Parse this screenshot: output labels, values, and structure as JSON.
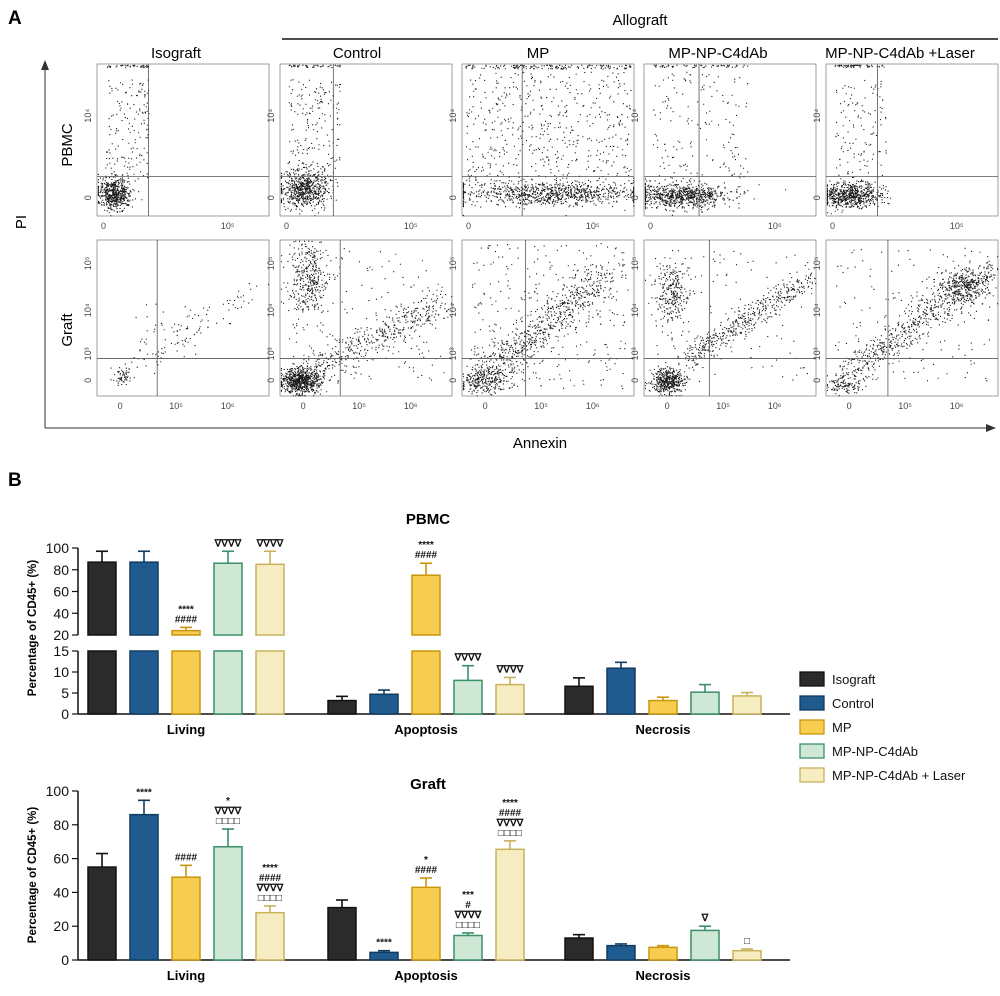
{
  "panel_a": {
    "label": "A",
    "allograft_label": "Allograft",
    "columns": [
      "Isograft",
      "Control",
      "MP",
      "MP-NP-C4dAb",
      "MP-NP-C4dAb +Laser"
    ],
    "rows": [
      "PBMC",
      "Graft"
    ],
    "y_axis_label": "PI",
    "x_axis_label": "Annexin",
    "pbmc_x_ticks": [
      "0",
      "10⁵"
    ],
    "pbmc_y_ticks": [
      "0",
      "10⁴"
    ],
    "graft_x_ticks": [
      "0",
      "10⁵",
      "10⁶"
    ],
    "graft_y_ticks": [
      "0",
      "10³",
      "10⁴",
      "10⁵"
    ]
  },
  "panel_b": {
    "label": "B"
  },
  "colors": {
    "Isograft": "#2b2b2b",
    "Control": "#1f5b8e",
    "MP": "#f7cd4f",
    "MP-NP-C4dAb": "#cfe8d6",
    "MP-NP-C4dAb + Laser": "#f6ecc1"
  },
  "chart_data": [
    {
      "type": "bar",
      "title": "PBMC",
      "ylabel": "Percentage of CD45+ (%)",
      "categories": [
        "Living",
        "Apoptosis",
        "Necrosis"
      ],
      "ylim_lower": [
        0,
        15
      ],
      "ylim_upper": [
        20,
        100
      ],
      "yticks_lower": [
        "0",
        "5",
        "10",
        "15"
      ],
      "yticks_upper": [
        "20",
        "40",
        "60",
        "80",
        "100"
      ],
      "series": [
        {
          "name": "Isograft",
          "values": [
            87,
            3.2,
            6.6
          ],
          "errors": [
            10,
            1,
            2
          ]
        },
        {
          "name": "Control",
          "values": [
            87,
            4.7,
            10.9
          ],
          "errors": [
            10,
            1,
            1.4
          ]
        },
        {
          "name": "MP",
          "values": [
            24,
            75,
            3.2
          ],
          "errors": [
            3,
            11,
            0.8
          ]
        },
        {
          "name": "MP-NP-C4dAb",
          "values": [
            86,
            8,
            5.2
          ],
          "errors": [
            11,
            3.5,
            1.8
          ]
        },
        {
          "name": "MP-NP-C4dAb + Laser",
          "values": [
            85,
            7,
            4.3
          ],
          "errors": [
            12,
            1.7,
            0.8
          ]
        }
      ],
      "annotations": [
        [
          "",
          "",
          ""
        ],
        [
          "",
          "",
          ""
        ],
        [
          [
            "****",
            "####"
          ],
          [
            "****",
            "####"
          ],
          []
        ],
        [
          [
            "∇∇∇∇"
          ],
          [
            "∇∇∇∇"
          ],
          []
        ],
        [
          [
            "∇∇∇∇"
          ],
          [
            "∇∇∇∇"
          ],
          []
        ]
      ]
    },
    {
      "type": "bar",
      "title": "Graft",
      "ylabel": "Percentage of CD45+ (%)",
      "categories": [
        "Living",
        "Apoptosis",
        "Necrosis"
      ],
      "ylim": [
        0,
        100
      ],
      "yticks": [
        "0",
        "20",
        "40",
        "60",
        "80",
        "100"
      ],
      "series": [
        {
          "name": "Isograft",
          "values": [
            55,
            31,
            13
          ],
          "errors": [
            8,
            4.5,
            2
          ]
        },
        {
          "name": "Control",
          "values": [
            86,
            4.5,
            8.5
          ],
          "errors": [
            8.5,
            1,
            1
          ]
        },
        {
          "name": "MP",
          "values": [
            49,
            43,
            7.5
          ],
          "errors": [
            7,
            5.5,
            1
          ]
        },
        {
          "name": "MP-NP-C4dAb",
          "values": [
            67,
            14.5,
            17.5
          ],
          "errors": [
            10.5,
            1.5,
            2.5
          ]
        },
        {
          "name": "MP-NP-C4dAb + Laser",
          "values": [
            28,
            65.5,
            5.5
          ],
          "errors": [
            4,
            5,
            1
          ]
        }
      ],
      "annotations": [
        [
          [],
          [],
          []
        ],
        [
          [
            "****"
          ],
          [
            "****"
          ],
          []
        ],
        [
          [
            "####"
          ],
          [
            "*",
            "####"
          ],
          []
        ],
        [
          [
            "*",
            "∇∇∇∇",
            "□□□□"
          ],
          [
            "***",
            "#",
            "∇∇∇∇",
            "□□□□"
          ],
          [
            "∇"
          ]
        ],
        [
          [
            "****",
            "####",
            "∇∇∇∇",
            "□□□□"
          ],
          [
            "****",
            "####",
            "∇∇∇∇",
            "□□□□"
          ],
          [
            "□"
          ]
        ]
      ]
    }
  ]
}
